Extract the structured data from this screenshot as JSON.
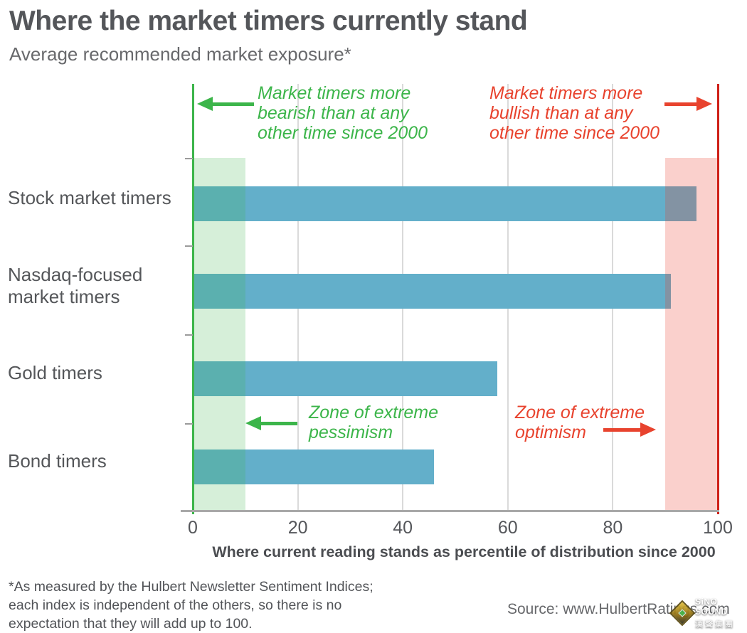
{
  "header": {
    "title": "Where the market timers currently stand",
    "subtitle": "Average recommended market exposure*"
  },
  "chart_data": {
    "type": "bar",
    "orientation": "horizontal",
    "title": "Where the market timers currently stand",
    "subtitle": "Average recommended market exposure*",
    "categories": [
      "Stock market timers",
      "Nasdaq-focused market timers",
      "Gold timers",
      "Bond timers"
    ],
    "category_lines": [
      [
        "Stock market timers"
      ],
      [
        "Nasdaq-focused",
        "market timers"
      ],
      [
        "Gold timers"
      ],
      [
        "Bond timers"
      ]
    ],
    "values": [
      96,
      91,
      58,
      46
    ],
    "xlabel": "Where current reading stands as percentile of distribution since 2000",
    "ylabel": "",
    "xlim": [
      0,
      100
    ],
    "xticks": [
      0,
      20,
      40,
      60,
      80,
      100
    ],
    "grid": "vertical",
    "zones": [
      {
        "name": "extreme pessimism",
        "range": [
          0,
          10
        ]
      },
      {
        "name": "extreme optimism",
        "range": [
          90,
          100
        ]
      }
    ]
  },
  "annotations": {
    "bearish_lines": [
      "Market timers more",
      "bearish than at any",
      "other time since 2000"
    ],
    "bullish_lines": [
      "Market timers more",
      "bullish than at any",
      "other time since 2000"
    ],
    "pessimism_lines": [
      "Zone of extreme",
      "pessimism"
    ],
    "optimism_lines": [
      "Zone of extreme",
      "optimism"
    ]
  },
  "footer": {
    "footnote_lines": [
      "*As measured by the Hulbert Newsletter Sentiment Indices;",
      "each index is independent of the others, so there is no",
      "expectation that they will add up to 100."
    ],
    "source": "Source: www.HulbertRatings.com"
  },
  "watermark": {
    "line1": "SiNO SOUND",
    "line2": "漢聲集團"
  },
  "colors": {
    "bar": "#63afca",
    "green_accent": "#3cb54a",
    "red_accent": "#e8432e",
    "red_line": "#cf2018",
    "grid": "#dadada",
    "green_zone_fill": "rgba(61,180,74,0.21)",
    "red_zone_fill": "rgba(234,60,42,0.24)"
  }
}
